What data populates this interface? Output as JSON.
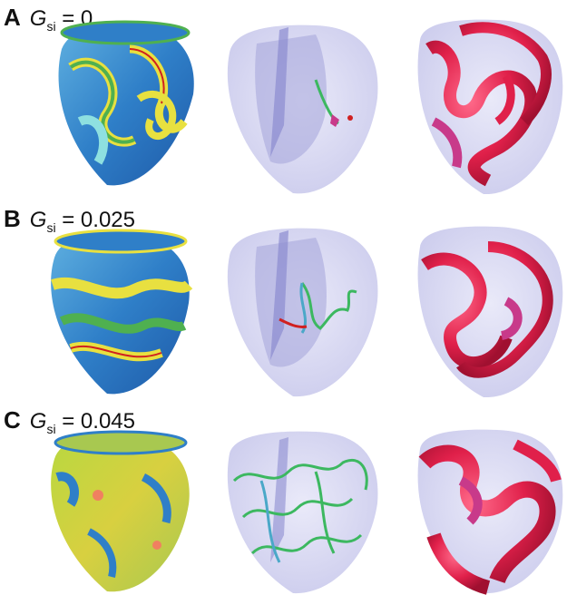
{
  "rows": [
    {
      "letter": "A",
      "symbol": "G",
      "subscript": "si",
      "equals": "= 0"
    },
    {
      "letter": "B",
      "symbol": "G",
      "subscript": "si",
      "equals": "= 0.025"
    },
    {
      "letter": "C",
      "symbol": "G",
      "subscript": "si",
      "equals": "= 0.045"
    }
  ],
  "colors": {
    "surface_blue": "#2f7fc8",
    "surface_cyan": "#8ee0e0",
    "surface_green": "#4fb050",
    "surface_yellow": "#e8e040",
    "surface_red": "#d02020",
    "shell_fill": "#c8c8ee",
    "septum_fill": "#8c8cd0",
    "filament_green": "#3cb860",
    "filament_cyan": "#4aa8c8",
    "wavefront_red": "#e0204a",
    "wavefront_pink": "#c83a8a"
  }
}
